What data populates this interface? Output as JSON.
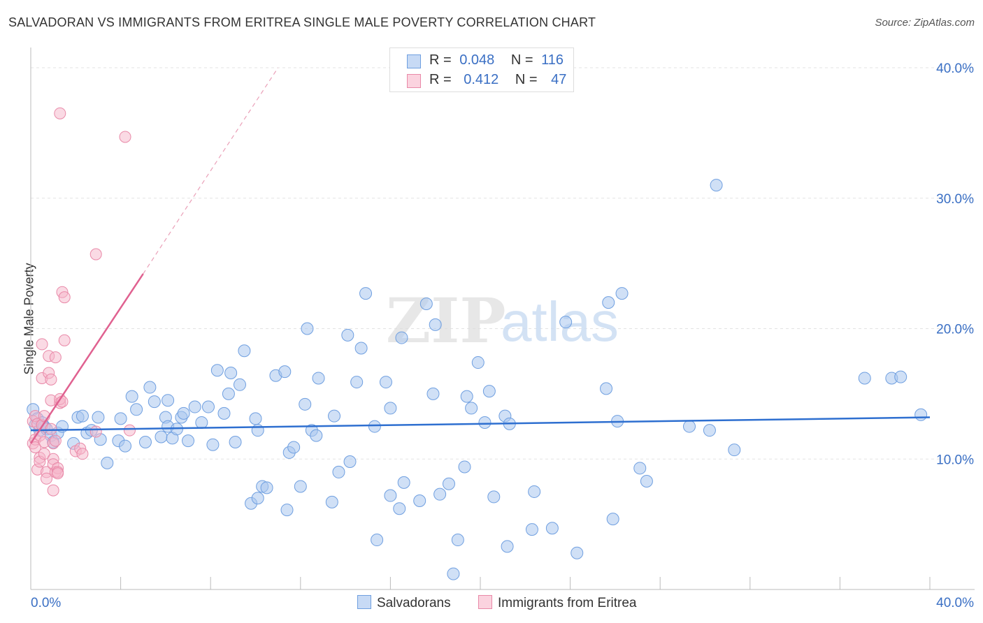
{
  "chart_data": {
    "type": "scatter",
    "title": "SALVADORAN VS IMMIGRANTS FROM ERITREA SINGLE MALE POVERTY CORRELATION CHART",
    "source": "Source: ZipAtlas.com",
    "ylabel": "Single Male Poverty",
    "xlim": [
      0,
      40
    ],
    "ylim": [
      0,
      40
    ],
    "x_tick_labels": [
      "0.0%",
      "40.0%"
    ],
    "y_tick_labels": [
      "10.0%",
      "20.0%",
      "30.0%",
      "40.0%"
    ],
    "y_ticks": [
      10,
      20,
      30,
      40
    ],
    "watermark": "ZIPatlas",
    "legend": {
      "rows": [
        {
          "r_label": "R =",
          "r_value": "0.048",
          "n_label": "N =",
          "n_value": "116",
          "color": "#a9c6ef"
        },
        {
          "r_label": "R =",
          "r_value": "0.412",
          "n_label": "N =",
          "n_value": "47",
          "color": "#f6b5c9"
        }
      ]
    },
    "series": [
      {
        "name": "Salvadorans",
        "color": "#a9c6ef",
        "stroke": "#6f9fe0",
        "trend": {
          "x": [
            0,
            40
          ],
          "y": [
            12.2,
            13.2
          ],
          "color": "#2e6fd0"
        },
        "points": [
          [
            0.1,
            13.8
          ],
          [
            0.2,
            12.6
          ],
          [
            0.3,
            13.1
          ],
          [
            0.4,
            12.2
          ],
          [
            0.5,
            12.8
          ],
          [
            0.6,
            12.5
          ],
          [
            0.7,
            12.3
          ],
          [
            0.9,
            11.8
          ],
          [
            1.0,
            11.3
          ],
          [
            1.2,
            12.0
          ],
          [
            1.4,
            12.5
          ],
          [
            1.9,
            11.2
          ],
          [
            2.1,
            13.2
          ],
          [
            2.3,
            13.3
          ],
          [
            2.5,
            12.0
          ],
          [
            2.7,
            12.2
          ],
          [
            3.0,
            13.2
          ],
          [
            3.1,
            11.5
          ],
          [
            3.4,
            9.7
          ],
          [
            4.0,
            13.1
          ],
          [
            3.9,
            11.4
          ],
          [
            4.2,
            11.0
          ],
          [
            4.5,
            14.8
          ],
          [
            4.7,
            13.8
          ],
          [
            5.1,
            11.3
          ],
          [
            5.3,
            15.5
          ],
          [
            5.5,
            14.4
          ],
          [
            5.8,
            11.7
          ],
          [
            6.0,
            13.2
          ],
          [
            6.1,
            14.5
          ],
          [
            6.1,
            12.5
          ],
          [
            6.3,
            11.6
          ],
          [
            6.5,
            12.3
          ],
          [
            6.7,
            13.2
          ],
          [
            6.8,
            13.5
          ],
          [
            7.0,
            11.4
          ],
          [
            7.3,
            14.0
          ],
          [
            7.6,
            12.8
          ],
          [
            7.9,
            14.0
          ],
          [
            8.1,
            11.1
          ],
          [
            8.3,
            16.8
          ],
          [
            8.6,
            13.5
          ],
          [
            8.8,
            15.0
          ],
          [
            8.9,
            16.6
          ],
          [
            9.1,
            11.3
          ],
          [
            9.3,
            15.7
          ],
          [
            9.5,
            18.3
          ],
          [
            10.0,
            13.1
          ],
          [
            10.1,
            12.2
          ],
          [
            9.8,
            6.6
          ],
          [
            10.1,
            7.0
          ],
          [
            10.3,
            7.9
          ],
          [
            10.5,
            7.8
          ],
          [
            10.9,
            16.4
          ],
          [
            11.3,
            16.7
          ],
          [
            11.4,
            6.1
          ],
          [
            11.5,
            10.5
          ],
          [
            11.7,
            10.9
          ],
          [
            12.0,
            7.9
          ],
          [
            12.2,
            14.2
          ],
          [
            12.3,
            20.0
          ],
          [
            12.5,
            12.2
          ],
          [
            12.7,
            11.8
          ],
          [
            12.8,
            16.2
          ],
          [
            13.4,
            6.7
          ],
          [
            13.5,
            13.3
          ],
          [
            13.7,
            9.0
          ],
          [
            14.1,
            19.5
          ],
          [
            14.2,
            9.8
          ],
          [
            14.5,
            15.9
          ],
          [
            14.7,
            18.5
          ],
          [
            14.9,
            22.7
          ],
          [
            15.3,
            12.5
          ],
          [
            15.4,
            3.8
          ],
          [
            15.8,
            15.9
          ],
          [
            16.0,
            13.9
          ],
          [
            16.0,
            7.2
          ],
          [
            16.4,
            6.2
          ],
          [
            16.5,
            19.3
          ],
          [
            16.6,
            8.2
          ],
          [
            17.3,
            6.8
          ],
          [
            17.6,
            21.9
          ],
          [
            17.9,
            15.0
          ],
          [
            18.0,
            20.3
          ],
          [
            18.2,
            7.3
          ],
          [
            18.6,
            8.1
          ],
          [
            18.8,
            1.2
          ],
          [
            19.0,
            3.8
          ],
          [
            19.3,
            9.4
          ],
          [
            19.4,
            14.8
          ],
          [
            19.6,
            13.9
          ],
          [
            19.9,
            17.4
          ],
          [
            20.2,
            12.8
          ],
          [
            20.4,
            15.2
          ],
          [
            20.6,
            7.1
          ],
          [
            21.1,
            13.3
          ],
          [
            21.2,
            3.3
          ],
          [
            21.3,
            12.7
          ],
          [
            22.3,
            4.6
          ],
          [
            22.4,
            7.5
          ],
          [
            23.2,
            4.7
          ],
          [
            23.8,
            20.5
          ],
          [
            24.3,
            2.8
          ],
          [
            25.6,
            15.4
          ],
          [
            25.7,
            22.0
          ],
          [
            25.9,
            5.4
          ],
          [
            26.1,
            12.9
          ],
          [
            26.3,
            22.7
          ],
          [
            27.1,
            9.3
          ],
          [
            27.4,
            8.3
          ],
          [
            29.3,
            12.5
          ],
          [
            30.2,
            12.2
          ],
          [
            30.5,
            31.0
          ],
          [
            31.3,
            10.7
          ],
          [
            37.1,
            16.2
          ],
          [
            38.3,
            16.2
          ],
          [
            38.7,
            16.3
          ],
          [
            39.6,
            13.4
          ]
        ]
      },
      {
        "name": "Immigrants from Eritrea",
        "color": "#f6b5c9",
        "stroke": "#e989a8",
        "trend_solid": {
          "x": [
            0,
            5
          ],
          "y": [
            11.2,
            24.2
          ],
          "color": "#e06190"
        },
        "trend_dashed": {
          "x": [
            5,
            11
          ],
          "y": [
            24.2,
            40.0
          ],
          "color": "#eaa0b8"
        },
        "points": [
          [
            0.1,
            12.9
          ],
          [
            0.1,
            11.2
          ],
          [
            0.2,
            11.5
          ],
          [
            0.2,
            10.9
          ],
          [
            0.2,
            13.3
          ],
          [
            0.3,
            9.2
          ],
          [
            0.3,
            12.7
          ],
          [
            0.4,
            11.8
          ],
          [
            0.4,
            10.1
          ],
          [
            0.4,
            9.8
          ],
          [
            0.5,
            18.8
          ],
          [
            0.5,
            16.2
          ],
          [
            0.5,
            12.6
          ],
          [
            0.6,
            13.3
          ],
          [
            0.6,
            11.3
          ],
          [
            0.6,
            10.4
          ],
          [
            0.7,
            9.0
          ],
          [
            0.7,
            8.5
          ],
          [
            0.8,
            17.9
          ],
          [
            0.8,
            16.6
          ],
          [
            0.9,
            14.5
          ],
          [
            0.9,
            16.1
          ],
          [
            0.9,
            12.3
          ],
          [
            1.0,
            11.2
          ],
          [
            1.0,
            10.0
          ],
          [
            1.0,
            9.6
          ],
          [
            1.0,
            7.6
          ],
          [
            1.1,
            9.0
          ],
          [
            1.1,
            11.4
          ],
          [
            1.2,
            9.3
          ],
          [
            1.1,
            17.8
          ],
          [
            1.2,
            9.0
          ],
          [
            1.2,
            8.9
          ],
          [
            1.3,
            14.3
          ],
          [
            1.3,
            14.6
          ],
          [
            1.4,
            14.4
          ],
          [
            1.4,
            22.8
          ],
          [
            1.5,
            22.4
          ],
          [
            1.5,
            19.1
          ],
          [
            1.3,
            36.5
          ],
          [
            2.0,
            10.6
          ],
          [
            2.2,
            10.8
          ],
          [
            2.3,
            10.4
          ],
          [
            2.9,
            25.7
          ],
          [
            2.9,
            12.1
          ],
          [
            4.2,
            34.7
          ],
          [
            4.4,
            12.2
          ]
        ]
      }
    ]
  }
}
